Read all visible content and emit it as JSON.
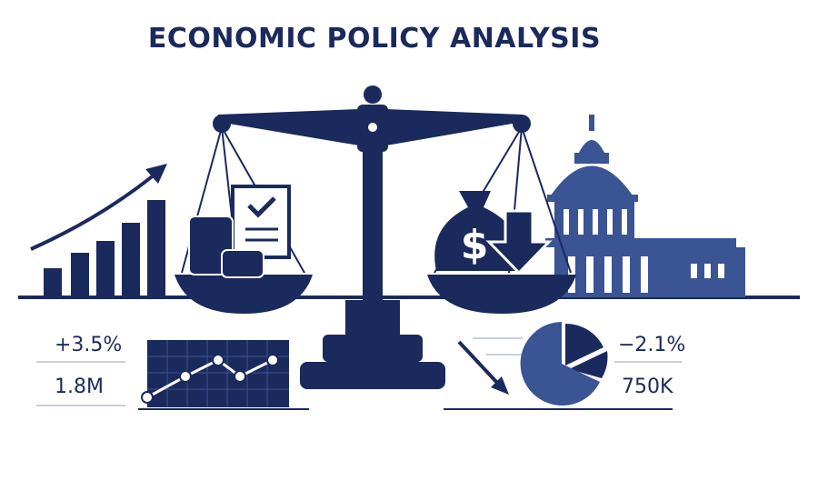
{
  "header": {
    "title": "ECONOMIC POLICY ANALYSIS"
  },
  "left_stats": [
    "+3.5%",
    "1.8M"
  ],
  "right_stats": [
    "−2.1%",
    "750K"
  ]
}
